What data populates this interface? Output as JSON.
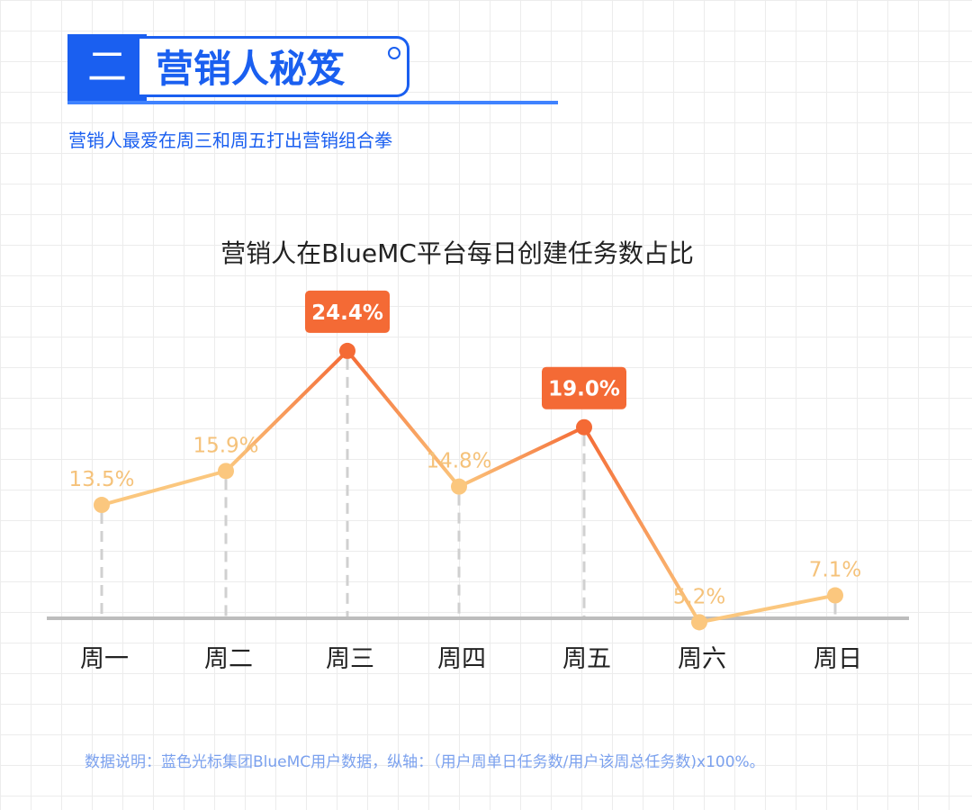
{
  "header": {
    "number": "二",
    "title": "营销人秘笈",
    "subtitle": "营销人最爱在周三和周五打出营销组合拳"
  },
  "chart_data": {
    "type": "line",
    "title": "营销人在BlueMC平台每日创建任务数占比",
    "categories": [
      "周一",
      "周二",
      "周三",
      "周四",
      "周五",
      "周六",
      "周日"
    ],
    "values": [
      13.5,
      15.9,
      24.4,
      14.8,
      19.0,
      5.2,
      7.1
    ],
    "labels": [
      "13.5%",
      "15.9%",
      "24.4%",
      "14.8%",
      "19.0%",
      "5.2%",
      "7.1%"
    ],
    "highlight": [
      2,
      4
    ],
    "ylim": [
      0,
      24.4
    ],
    "grid": false,
    "colors": {
      "line": "#fbc77e",
      "highlight": "#f46a35",
      "label": "#f5c27a",
      "axis": "#bdbdbd",
      "drop": "#d0d0d0"
    }
  },
  "footnote": "数据说明：蓝色光标集团BlueMC用户数据，纵轴：（用户周单日任务数/用户该周总任务数)x100%。"
}
